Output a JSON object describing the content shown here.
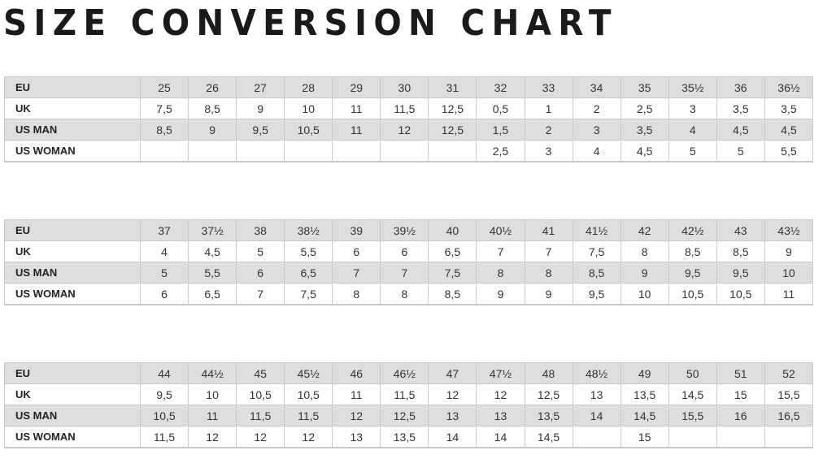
{
  "title": "SIZE CONVERSION CHART",
  "row_labels": [
    "EU",
    "UK",
    "US MAN",
    "US WOMAN"
  ],
  "tables": [
    {
      "EU": [
        "25",
        "26",
        "27",
        "28",
        "29",
        "30",
        "31",
        "32",
        "33",
        "34",
        "35",
        "35½",
        "36",
        "36½"
      ],
      "UK": [
        "7,5",
        "8,5",
        "9",
        "10",
        "11",
        "11,5",
        "12,5",
        "0,5",
        "1",
        "2",
        "2,5",
        "3",
        "3,5",
        "3,5"
      ],
      "US MAN": [
        "8,5",
        "9",
        "9,5",
        "10,5",
        "11",
        "12",
        "12,5",
        "1,5",
        "2",
        "3",
        "3,5",
        "4",
        "4,5",
        "4,5"
      ],
      "US WOMAN": [
        "",
        "",
        "",
        "",
        "",
        "",
        "",
        "2,5",
        "3",
        "4",
        "4,5",
        "5",
        "5",
        "5,5"
      ]
    },
    {
      "EU": [
        "37",
        "37½",
        "38",
        "38½",
        "39",
        "39½",
        "40",
        "40½",
        "41",
        "41½",
        "42",
        "42½",
        "43",
        "43½"
      ],
      "UK": [
        "4",
        "4,5",
        "5",
        "5,5",
        "6",
        "6",
        "6,5",
        "7",
        "7",
        "7,5",
        "8",
        "8,5",
        "8,5",
        "9"
      ],
      "US MAN": [
        "5",
        "5,5",
        "6",
        "6,5",
        "7",
        "7",
        "7,5",
        "8",
        "8",
        "8,5",
        "9",
        "9,5",
        "9,5",
        "10"
      ],
      "US WOMAN": [
        "6",
        "6,5",
        "7",
        "7,5",
        "8",
        "8",
        "8,5",
        "9",
        "9",
        "9,5",
        "10",
        "10,5",
        "10,5",
        "11"
      ]
    },
    {
      "EU": [
        "44",
        "44½",
        "45",
        "45½",
        "46",
        "46½",
        "47",
        "47½",
        "48",
        "48½",
        "49",
        "50",
        "51",
        "52"
      ],
      "UK": [
        "9,5",
        "10",
        "10,5",
        "10,5",
        "11",
        "11,5",
        "12",
        "12",
        "12,5",
        "13",
        "13,5",
        "14,5",
        "15",
        "15,5"
      ],
      "US MAN": [
        "10,5",
        "11",
        "11,5",
        "11,5",
        "12",
        "12,5",
        "13",
        "13",
        "13,5",
        "14",
        "14,5",
        "15,5",
        "16",
        "16,5"
      ],
      "US WOMAN": [
        "11,5",
        "12",
        "12",
        "12",
        "13",
        "13,5",
        "14",
        "14",
        "14,5",
        "",
        "15",
        "",
        "",
        ""
      ]
    }
  ]
}
